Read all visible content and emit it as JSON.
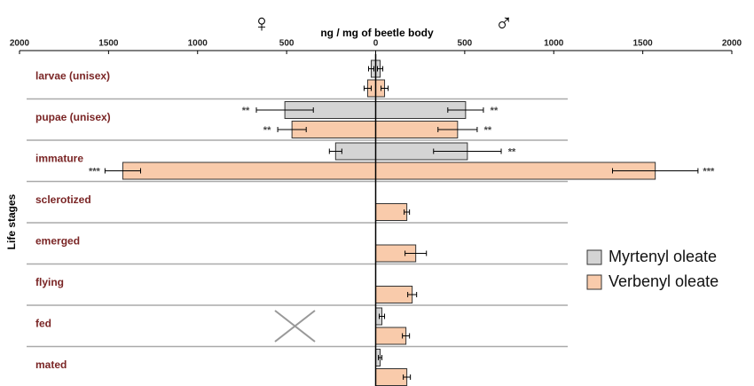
{
  "chart_data": {
    "type": "diverging-bar",
    "title": "ng / mg of beetle body",
    "female_symbol": "♀",
    "male_symbol": "♂",
    "y_label": "Life stages",
    "categories": [
      "larvae (unisex)",
      "pupae (unisex)",
      "immature",
      "sclerotized",
      "emerged",
      "flying",
      "fed",
      "mated"
    ],
    "xlim": [
      -2000,
      2000
    ],
    "xticks": [
      {
        "value": -2000,
        "label": "2000"
      },
      {
        "value": -1500,
        "label": "1500"
      },
      {
        "value": -1000,
        "label": "1000"
      },
      {
        "value": -500,
        "label": "500"
      },
      0,
      500,
      1000,
      1500,
      2000
    ],
    "series": [
      {
        "name": "Myrtenyl oleate",
        "color": "#d4d4d4",
        "female": [
          25,
          510,
          225,
          null,
          null,
          null,
          null,
          null
        ],
        "female_err": [
          15,
          160,
          35,
          null,
          null,
          null,
          null,
          null
        ],
        "male": [
          25,
          505,
          515,
          null,
          null,
          null,
          35,
          25
        ],
        "male_err": [
          15,
          100,
          190,
          null,
          null,
          null,
          15,
          10
        ],
        "female_sig": [
          null,
          "**",
          null,
          null,
          null,
          null,
          null,
          null
        ],
        "male_sig": [
          null,
          "**",
          "**",
          null,
          null,
          null,
          null,
          null
        ]
      },
      {
        "name": "Verbenyl oleate",
        "color": "#f9cbab",
        "female": [
          45,
          470,
          1420,
          null,
          null,
          null,
          null,
          null
        ],
        "female_err": [
          20,
          80,
          100,
          null,
          null,
          null,
          null,
          null
        ],
        "male": [
          50,
          460,
          1570,
          175,
          225,
          205,
          170,
          175
        ],
        "male_err": [
          20,
          110,
          240,
          15,
          60,
          25,
          20,
          20
        ],
        "female_sig": [
          null,
          "**",
          "***",
          null,
          null,
          null,
          null,
          null
        ],
        "male_sig": [
          null,
          "**",
          "***",
          null,
          null,
          null,
          null,
          null
        ]
      }
    ]
  }
}
